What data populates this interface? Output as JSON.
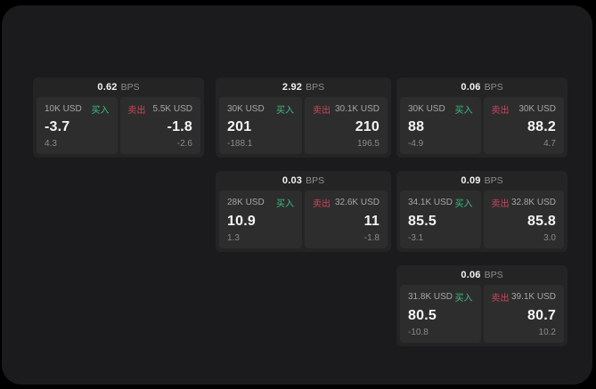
{
  "labels": {
    "bps": "BPS",
    "buy": "买入",
    "sell": "卖出"
  },
  "colors": {
    "page_bg": "#000000",
    "panel_bg": "#1b1b1d",
    "card_bg": "#242425",
    "tile_bg": "#2d2d2e",
    "buy_green": "#3cbe7d",
    "sell_red": "#cd4659"
  },
  "cards": [
    {
      "spread": "0.62",
      "buy": {
        "amount": "10K USD",
        "price": "-3.7",
        "change": "4.3"
      },
      "sell": {
        "amount": "5.5K USD",
        "price": "-1.8",
        "change": "-2.6"
      }
    },
    {
      "spread": "2.92",
      "buy": {
        "amount": "30K USD",
        "price": "201",
        "change": "-188.1"
      },
      "sell": {
        "amount": "30.1K USD",
        "price": "210",
        "change": "196.5"
      }
    },
    {
      "spread": "0.06",
      "buy": {
        "amount": "30K USD",
        "price": "88",
        "change": "-4.9"
      },
      "sell": {
        "amount": "30K USD",
        "price": "88.2",
        "change": "4.7"
      }
    },
    {
      "spread": "0.03",
      "buy": {
        "amount": "28K USD",
        "price": "10.9",
        "change": "1.3"
      },
      "sell": {
        "amount": "32.6K USD",
        "price": "11",
        "change": "-1.8"
      }
    },
    {
      "spread": "0.09",
      "buy": {
        "amount": "34.1K USD",
        "price": "85.5",
        "change": "-3.1"
      },
      "sell": {
        "amount": "32.8K USD",
        "price": "85.8",
        "change": "3.0"
      }
    },
    {
      "spread": "0.06",
      "buy": {
        "amount": "31.8K USD",
        "price": "80.5",
        "change": "-10.8"
      },
      "sell": {
        "amount": "39.1K USD",
        "price": "80.7",
        "change": "10.2"
      }
    }
  ]
}
